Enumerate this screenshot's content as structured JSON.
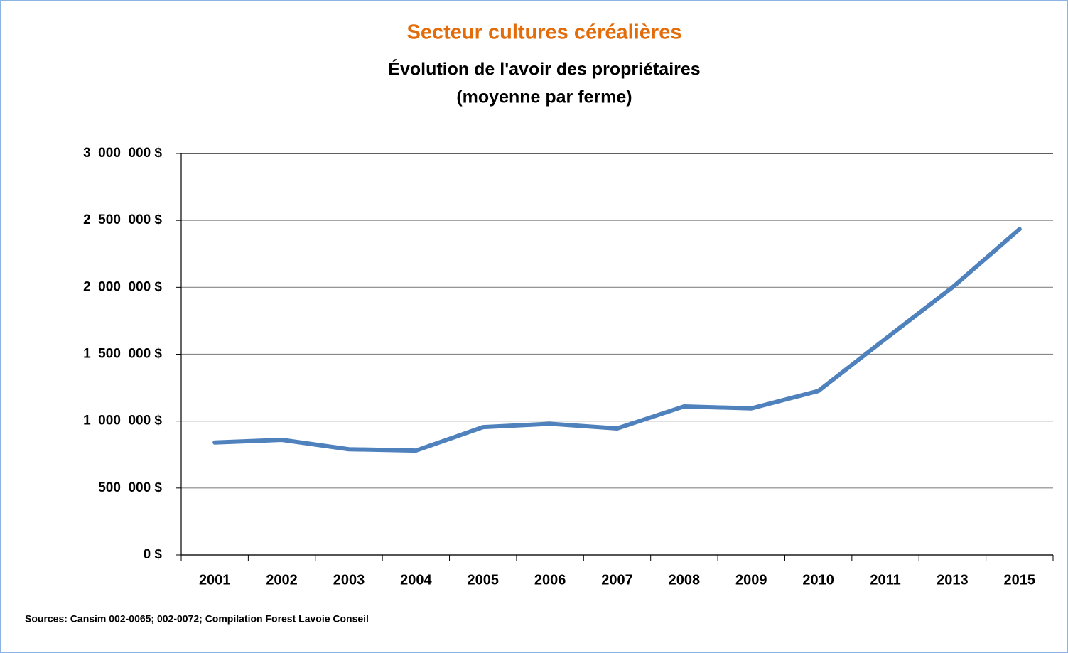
{
  "chart_data": {
    "type": "line",
    "title": "Secteur cultures céréalières",
    "subtitle": [
      "Évolution de l'avoir des propriétaires",
      "(moyenne par ferme)"
    ],
    "source": "Sources: Cansim 002-0065; 002-0072; Compilation Forest Lavoie Conseil",
    "categories": [
      "2001",
      "2002",
      "2003",
      "2004",
      "2005",
      "2006",
      "2007",
      "2008",
      "2009",
      "2010",
      "2011",
      "2013",
      "2015"
    ],
    "series": [
      {
        "color": "#4f81bd",
        "values": [
          840000,
          860000,
          790000,
          780000,
          955000,
          980000,
          945000,
          1110000,
          1095000,
          1225000,
          1615000,
          2000000,
          2435000
        ]
      }
    ],
    "ylim": [
      0,
      3000000
    ],
    "yticks": [
      {
        "value": 0,
        "label": "0 $"
      },
      {
        "value": 500000,
        "label": "500  000 $"
      },
      {
        "value": 1000000,
        "label": "1  000  000 $"
      },
      {
        "value": 1500000,
        "label": "1  500  000 $"
      },
      {
        "value": 2000000,
        "label": "2  000  000 $"
      },
      {
        "value": 2500000,
        "label": "2  500  000 $"
      },
      {
        "value": 3000000,
        "label": "3  000  000 $"
      }
    ],
    "grid": true
  }
}
